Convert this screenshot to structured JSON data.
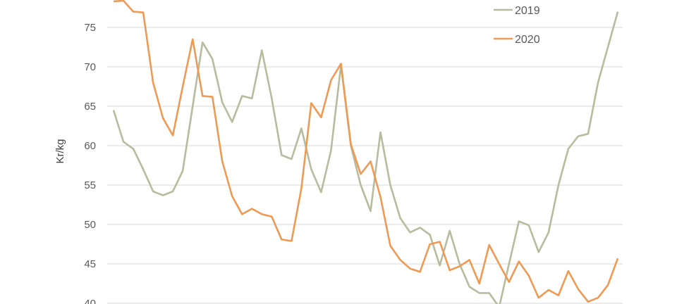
{
  "chart_data": {
    "type": "line",
    "title": "",
    "xlabel": "",
    "ylabel": "Kr/kg",
    "ylim": [
      40,
      78
    ],
    "yticks": [
      40,
      45,
      50,
      55,
      60,
      65,
      70,
      75
    ],
    "grid": true,
    "legend_position": "top-right",
    "series": [
      {
        "name": "2019",
        "color": "#b7bc9f",
        "values": [
          64.5,
          60.5,
          59.6,
          57,
          54.2,
          53.7,
          54.2,
          56.8,
          65,
          73.1,
          71,
          65.5,
          63,
          66.3,
          66,
          72.1,
          66,
          58.8,
          58.3,
          62.2,
          57,
          54.1,
          59.4,
          70.2,
          60,
          55,
          51.7,
          61.7,
          55,
          50.8,
          49,
          49.6,
          48.7,
          44.8,
          49.2,
          45,
          42.1,
          41.3,
          41.3,
          39.5,
          45,
          50.4,
          49.9,
          46.5,
          49,
          55,
          59.6,
          61.2,
          61.5,
          68,
          72.5,
          77
        ]
      },
      {
        "name": "2020",
        "color": "#ed9a55",
        "values": [
          78.3,
          78.4,
          77,
          76.9,
          68,
          63.5,
          61.3,
          67.5,
          73.5,
          66.3,
          66.2,
          58,
          53.6,
          51.3,
          52,
          51.3,
          51,
          48.1,
          47.9,
          54.6,
          65.4,
          63.6,
          68.3,
          70.4,
          60.2,
          56.4,
          58,
          53.5,
          47.3,
          45.5,
          44.4,
          44,
          47.5,
          47.8,
          44.2,
          44.7,
          45.5,
          42.5,
          47.4,
          45,
          42.7,
          45.3,
          43.5,
          40.7,
          41.7,
          41,
          44.1,
          41.8,
          40.2,
          40.7,
          42.3,
          45.7
        ]
      }
    ]
  }
}
